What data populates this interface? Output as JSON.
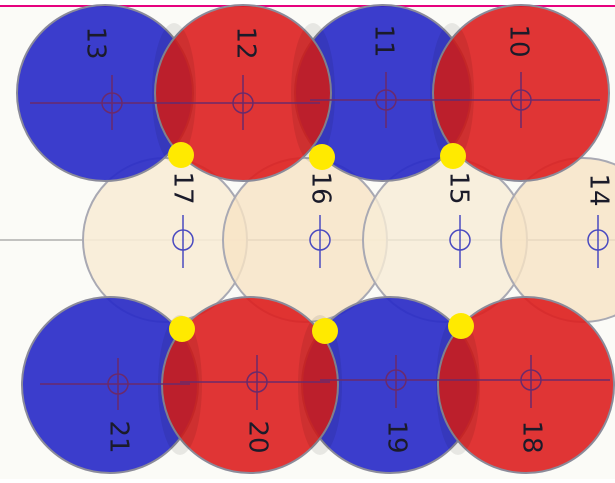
{
  "colors": {
    "red": "#dd1f1f",
    "blue": "#2a2dc8",
    "beige": "#f7e3c4",
    "outline": "#a9a9b3",
    "marker": "#ffea00",
    "topline": "#e6007e"
  },
  "top_row": [
    {
      "label": "13",
      "color": "blue"
    },
    {
      "label": "12",
      "color": "red"
    },
    {
      "label": "11",
      "color": "blue"
    },
    {
      "label": "10",
      "color": "red"
    }
  ],
  "middle_row": [
    {
      "label": "17",
      "color": "beige"
    },
    {
      "label": "16",
      "color": "beige"
    },
    {
      "label": "15",
      "color": "beige"
    },
    {
      "label": "14",
      "color": "beige"
    }
  ],
  "bottom_row": [
    {
      "label": "21",
      "color": "blue"
    },
    {
      "label": "20",
      "color": "red"
    },
    {
      "label": "19",
      "color": "blue"
    },
    {
      "label": "18",
      "color": "red"
    }
  ],
  "marker_count": 6
}
